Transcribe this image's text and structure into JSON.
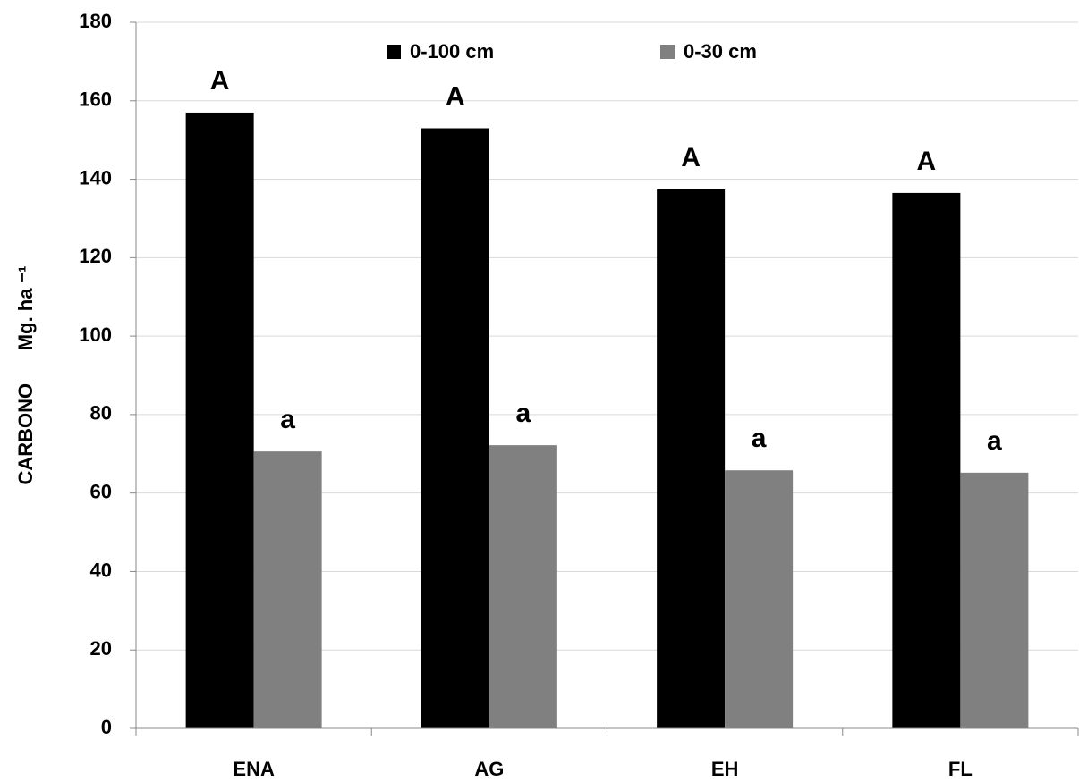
{
  "chart_data": {
    "type": "bar",
    "y_label": "CARBONO      Mg. ha ⁻¹",
    "categories": [
      "ENA",
      "AG",
      "EH",
      "FL"
    ],
    "series": [
      {
        "name": "0-100 cm",
        "color": "#000000",
        "values": [
          157,
          153,
          137.4,
          136.5
        ],
        "letters": [
          "A",
          "A",
          "A",
          "A"
        ]
      },
      {
        "name": "0-30 cm",
        "color": "#808080",
        "values": [
          70.6,
          72.2,
          65.8,
          65.2
        ],
        "letters": [
          "a",
          "a",
          "a",
          "a"
        ]
      }
    ],
    "ylim": [
      0,
      180
    ],
    "yticks": [
      0,
      20,
      40,
      60,
      80,
      100,
      120,
      140,
      160,
      180
    ],
    "grid": true
  }
}
